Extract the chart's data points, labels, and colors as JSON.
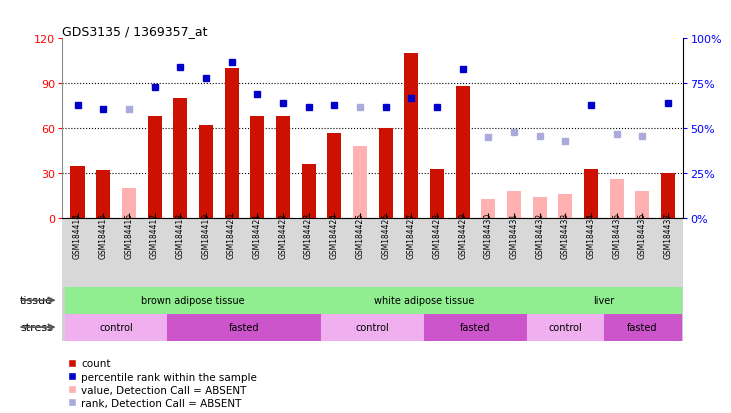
{
  "title": "GDS3135 / 1369357_at",
  "samples": [
    "GSM184414",
    "GSM184415",
    "GSM184416",
    "GSM184417",
    "GSM184418",
    "GSM184419",
    "GSM184420",
    "GSM184421",
    "GSM184422",
    "GSM184423",
    "GSM184424",
    "GSM184425",
    "GSM184426",
    "GSM184427",
    "GSM184428",
    "GSM184429",
    "GSM184430",
    "GSM184431",
    "GSM184432",
    "GSM184433",
    "GSM184434",
    "GSM184435",
    "GSM184436",
    "GSM184437"
  ],
  "count_present": [
    35,
    32,
    null,
    68,
    80,
    62,
    100,
    68,
    68,
    36,
    57,
    null,
    60,
    110,
    33,
    88,
    null,
    null,
    null,
    null,
    33,
    null,
    null,
    30
  ],
  "count_absent": [
    null,
    null,
    20,
    null,
    null,
    null,
    null,
    null,
    null,
    null,
    null,
    48,
    null,
    null,
    null,
    null,
    13,
    18,
    14,
    16,
    null,
    26,
    18,
    null
  ],
  "rank_present": [
    63,
    61,
    null,
    73,
    84,
    78,
    87,
    69,
    64,
    62,
    63,
    null,
    62,
    67,
    62,
    83,
    null,
    null,
    null,
    null,
    63,
    null,
    null,
    64
  ],
  "rank_absent": [
    null,
    null,
    61,
    null,
    null,
    null,
    null,
    null,
    null,
    null,
    null,
    62,
    null,
    null,
    null,
    null,
    45,
    48,
    46,
    43,
    null,
    47,
    46,
    null
  ],
  "bar_color_present": "#cc1100",
  "bar_color_absent": "#ffb0b0",
  "rank_color_present": "#0000cc",
  "rank_color_absent": "#aaaadd",
  "tissue_groups": [
    {
      "label": "brown adipose tissue",
      "start": 0,
      "end": 10
    },
    {
      "label": "white adipose tissue",
      "start": 10,
      "end": 18
    },
    {
      "label": "liver",
      "start": 18,
      "end": 24
    }
  ],
  "stress_groups": [
    {
      "label": "control",
      "start": 0,
      "end": 4,
      "color": "#f0b0f0"
    },
    {
      "label": "fasted",
      "start": 4,
      "end": 10,
      "color": "#cc55cc"
    },
    {
      "label": "control",
      "start": 10,
      "end": 14,
      "color": "#f0b0f0"
    },
    {
      "label": "fasted",
      "start": 14,
      "end": 18,
      "color": "#cc55cc"
    },
    {
      "label": "control",
      "start": 18,
      "end": 21,
      "color": "#f0b0f0"
    },
    {
      "label": "fasted",
      "start": 21,
      "end": 24,
      "color": "#cc55cc"
    }
  ],
  "ylim_left": [
    0,
    120
  ],
  "ylim_right": [
    0,
    100
  ],
  "yticks_left": [
    0,
    30,
    60,
    90,
    120
  ],
  "yticks_right": [
    0,
    25,
    50,
    75,
    100
  ],
  "ytick_labels_right": [
    "0%",
    "25%",
    "50%",
    "75%",
    "100%"
  ],
  "grid_lines": [
    30,
    60,
    90
  ],
  "tissue_color": "#90ee90",
  "xtick_bg": "#d8d8d8",
  "legend_labels": [
    "count",
    "percentile rank within the sample",
    "value, Detection Call = ABSENT",
    "rank, Detection Call = ABSENT"
  ],
  "legend_colors": [
    "#cc1100",
    "#0000cc",
    "#ffb0b0",
    "#aaaadd"
  ]
}
